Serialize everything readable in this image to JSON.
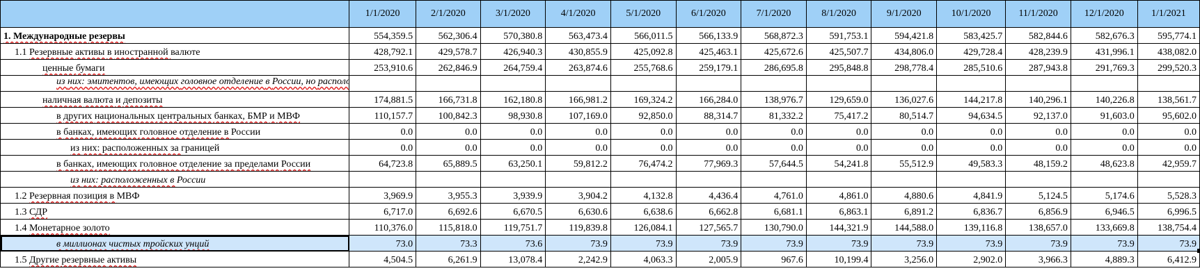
{
  "columns": [
    "1/1/2020",
    "2/1/2020",
    "3/1/2020",
    "4/1/2020",
    "5/1/2020",
    "6/1/2020",
    "7/1/2020",
    "8/1/2020",
    "9/1/2020",
    "10/1/2020",
    "11/1/2020",
    "12/1/2020",
    "1/1/2021"
  ],
  "rows": [
    {
      "label": "1. Международные резервы",
      "indent": 0,
      "style": "bold",
      "spell": [
        0,
        3
      ],
      "values": [
        "554,359.5",
        "562,306.4",
        "570,380.8",
        "563,473.4",
        "566,011.5",
        "566,133.9",
        "568,872.3",
        "591,753.1",
        "594,421.8",
        "583,425.7",
        "582,844.6",
        "582,676.3",
        "595,774.1"
      ]
    },
    {
      "label": "1.1 Резервные активы в иностранной валюте",
      "indent": 1,
      "style": "",
      "spell": [
        1,
        5
      ],
      "values": [
        "428,792.1",
        "429,578.7",
        "426,940.3",
        "430,855.9",
        "425,092.8",
        "425,463.1",
        "425,672.6",
        "425,507.7",
        "434,806.0",
        "429,728.4",
        "428,239.9",
        "431,996.1",
        "438,082.0"
      ]
    },
    {
      "label": "ценные бумаги",
      "indent": 3,
      "style": "",
      "spell": [
        0,
        2
      ],
      "values": [
        "253,910.6",
        "262,846.9",
        "264,759.4",
        "263,874.6",
        "255,768.6",
        "259,179.1",
        "286,695.8",
        "295,848.8",
        "298,778.4",
        "285,510.6",
        "287,943.8",
        "291,769.3",
        "299,520.3"
      ]
    },
    {
      "label": "из них: эмитентов, имеющих головное отделение в России, но расположенных за границей",
      "indent": 4,
      "style": "it",
      "spell": [
        0,
        20
      ],
      "tall": true,
      "values": [
        "",
        "",
        "",
        "",
        "",
        "",
        "",
        "",
        "",
        "",
        "",
        "",
        ""
      ]
    },
    {
      "label": "наличная валюта и депозиты",
      "indent": 3,
      "style": "",
      "spell": [
        0,
        4
      ],
      "values": [
        "174,881.5",
        "166,731.8",
        "162,180.8",
        "166,981.2",
        "169,324.2",
        "166,284.0",
        "138,976.7",
        "129,659.0",
        "136,027.6",
        "144,217.8",
        "140,296.1",
        "140,226.8",
        "138,561.7"
      ]
    },
    {
      "label": "в других национальных центральных банках, БМР и МВФ",
      "indent": 4,
      "style": "",
      "spell": [
        0,
        8
      ],
      "values": [
        "110,157.7",
        "100,842.3",
        "98,930.8",
        "107,169.0",
        "92,850.0",
        "88,314.7",
        "81,332.2",
        "75,417.2",
        "80,514.7",
        "94,634.5",
        "92,137.0",
        "91,603.0",
        "95,602.0"
      ]
    },
    {
      "label": "в банках, имеющих головное отделение в России",
      "indent": 4,
      "style": "",
      "spell": [
        0,
        6
      ],
      "values": [
        "0.0",
        "0.0",
        "0.0",
        "0.0",
        "0.0",
        "0.0",
        "0.0",
        "0.0",
        "0.0",
        "0.0",
        "0.0",
        "0.0",
        "0.0"
      ]
    },
    {
      "label": "из них: расположенных за границей",
      "indent": 5,
      "style": "",
      "spell": [
        0,
        4
      ],
      "values": [
        "0.0",
        "0.0",
        "0.0",
        "0.0",
        "0.0",
        "0.0",
        "0.0",
        "0.0",
        "0.0",
        "0.0",
        "0.0",
        "0.0",
        "0.0"
      ]
    },
    {
      "label": "в банках, имеющих головное отделение за пределами России",
      "indent": 4,
      "style": "",
      "spell": [
        0,
        8
      ],
      "values": [
        "64,723.8",
        "65,889.5",
        "63,250.1",
        "59,812.2",
        "76,474.2",
        "77,969.3",
        "57,644.5",
        "54,241.8",
        "55,512.9",
        "49,583.3",
        "48,159.2",
        "48,623.8",
        "42,959.7"
      ]
    },
    {
      "label": "из них: расположенных в России",
      "indent": 5,
      "style": "it",
      "spell": [
        0,
        4
      ],
      "values": [
        "",
        "",
        "",
        "",
        "",
        "",
        "",
        "",
        "",
        "",
        "",
        "",
        ""
      ]
    },
    {
      "label": "1.2 Резервная позиция в МВФ",
      "indent": 1,
      "style": "",
      "spell": [
        1,
        4
      ],
      "values": [
        "3,969.9",
        "3,955.3",
        "3,939.9",
        "3,904.2",
        "4,132.8",
        "4,436.4",
        "4,761.0",
        "4,861.0",
        "4,880.6",
        "4,841.9",
        "5,124.5",
        "5,174.6",
        "5,528.3"
      ]
    },
    {
      "label": "1.3 СДР",
      "indent": 1,
      "style": "",
      "spell": [
        1,
        2
      ],
      "values": [
        "6,717.0",
        "6,692.6",
        "6,670.5",
        "6,630.6",
        "6,638.6",
        "6,662.8",
        "6,681.1",
        "6,863.1",
        "6,891.2",
        "6,836.7",
        "6,856.9",
        "6,946.5",
        "6,996.5"
      ]
    },
    {
      "label": "1.4 Монетарное золото",
      "indent": 1,
      "style": "",
      "spell": [
        1,
        3
      ],
      "values": [
        "110,376.0",
        "115,818.0",
        "119,751.7",
        "119,839.8",
        "126,084.1",
        "127,565.7",
        "130,790.0",
        "144,321.9",
        "144,588.0",
        "139,116.8",
        "138,657.0",
        "133,669.8",
        "138,754.4"
      ]
    },
    {
      "label": "в миллионах чистых тройских унций",
      "indent": 4,
      "style": "it",
      "spell": [
        0,
        5
      ],
      "selected": true,
      "values": [
        "73.0",
        "73.3",
        "73.6",
        "73.9",
        "73.9",
        "73.9",
        "73.9",
        "73.9",
        "73.9",
        "73.9",
        "73.9",
        "73.9",
        "73.9"
      ]
    },
    {
      "label": "1.5 Другие резервные активы",
      "indent": 1,
      "style": "",
      "spell": [
        1,
        4
      ],
      "values": [
        "4,504.5",
        "6,261.9",
        "13,078.4",
        "2,242.9",
        "4,063.3",
        "2,005.9",
        "967.6",
        "10,199.4",
        "3,256.0",
        "2,902.0",
        "3,966.3",
        "4,889.3",
        "6,412.9"
      ]
    }
  ]
}
